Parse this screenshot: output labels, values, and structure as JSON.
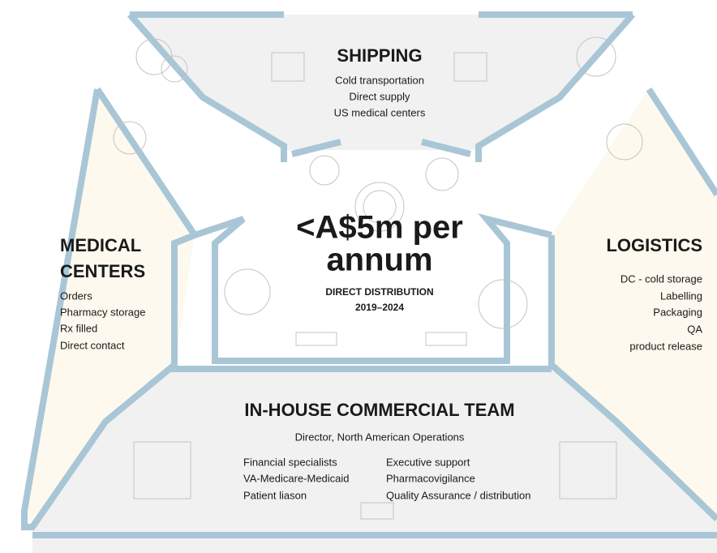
{
  "center": {
    "headline": [
      "<A$5m per",
      "annum"
    ],
    "subtitle": "DIRECT DISTRIBUTION",
    "years": "2019–2024"
  },
  "shipping": {
    "title": "SHIPPING",
    "items": [
      "Cold transportation",
      "Direct supply",
      "US medical centers"
    ]
  },
  "medical_centers": {
    "title": [
      "MEDICAL",
      "CENTERS"
    ],
    "items": [
      "Orders",
      "Pharmacy storage",
      "Rx filled",
      "Direct contact"
    ]
  },
  "logistics": {
    "title": "LOGISTICS",
    "items": [
      "DC - cold storage",
      "Labelling",
      "Packaging",
      "QA",
      "product release"
    ]
  },
  "commercial_team": {
    "title": "IN-HOUSE COMMERCIAL TEAM",
    "lead": "Director, North American Operations",
    "items_left": [
      "Financial specialists",
      "VA-Medicare-Medicaid",
      "Patient liason"
    ],
    "items_right": [
      "Executive support",
      "Pharmacovigilance",
      "Quality Assurance / distribution"
    ]
  }
}
